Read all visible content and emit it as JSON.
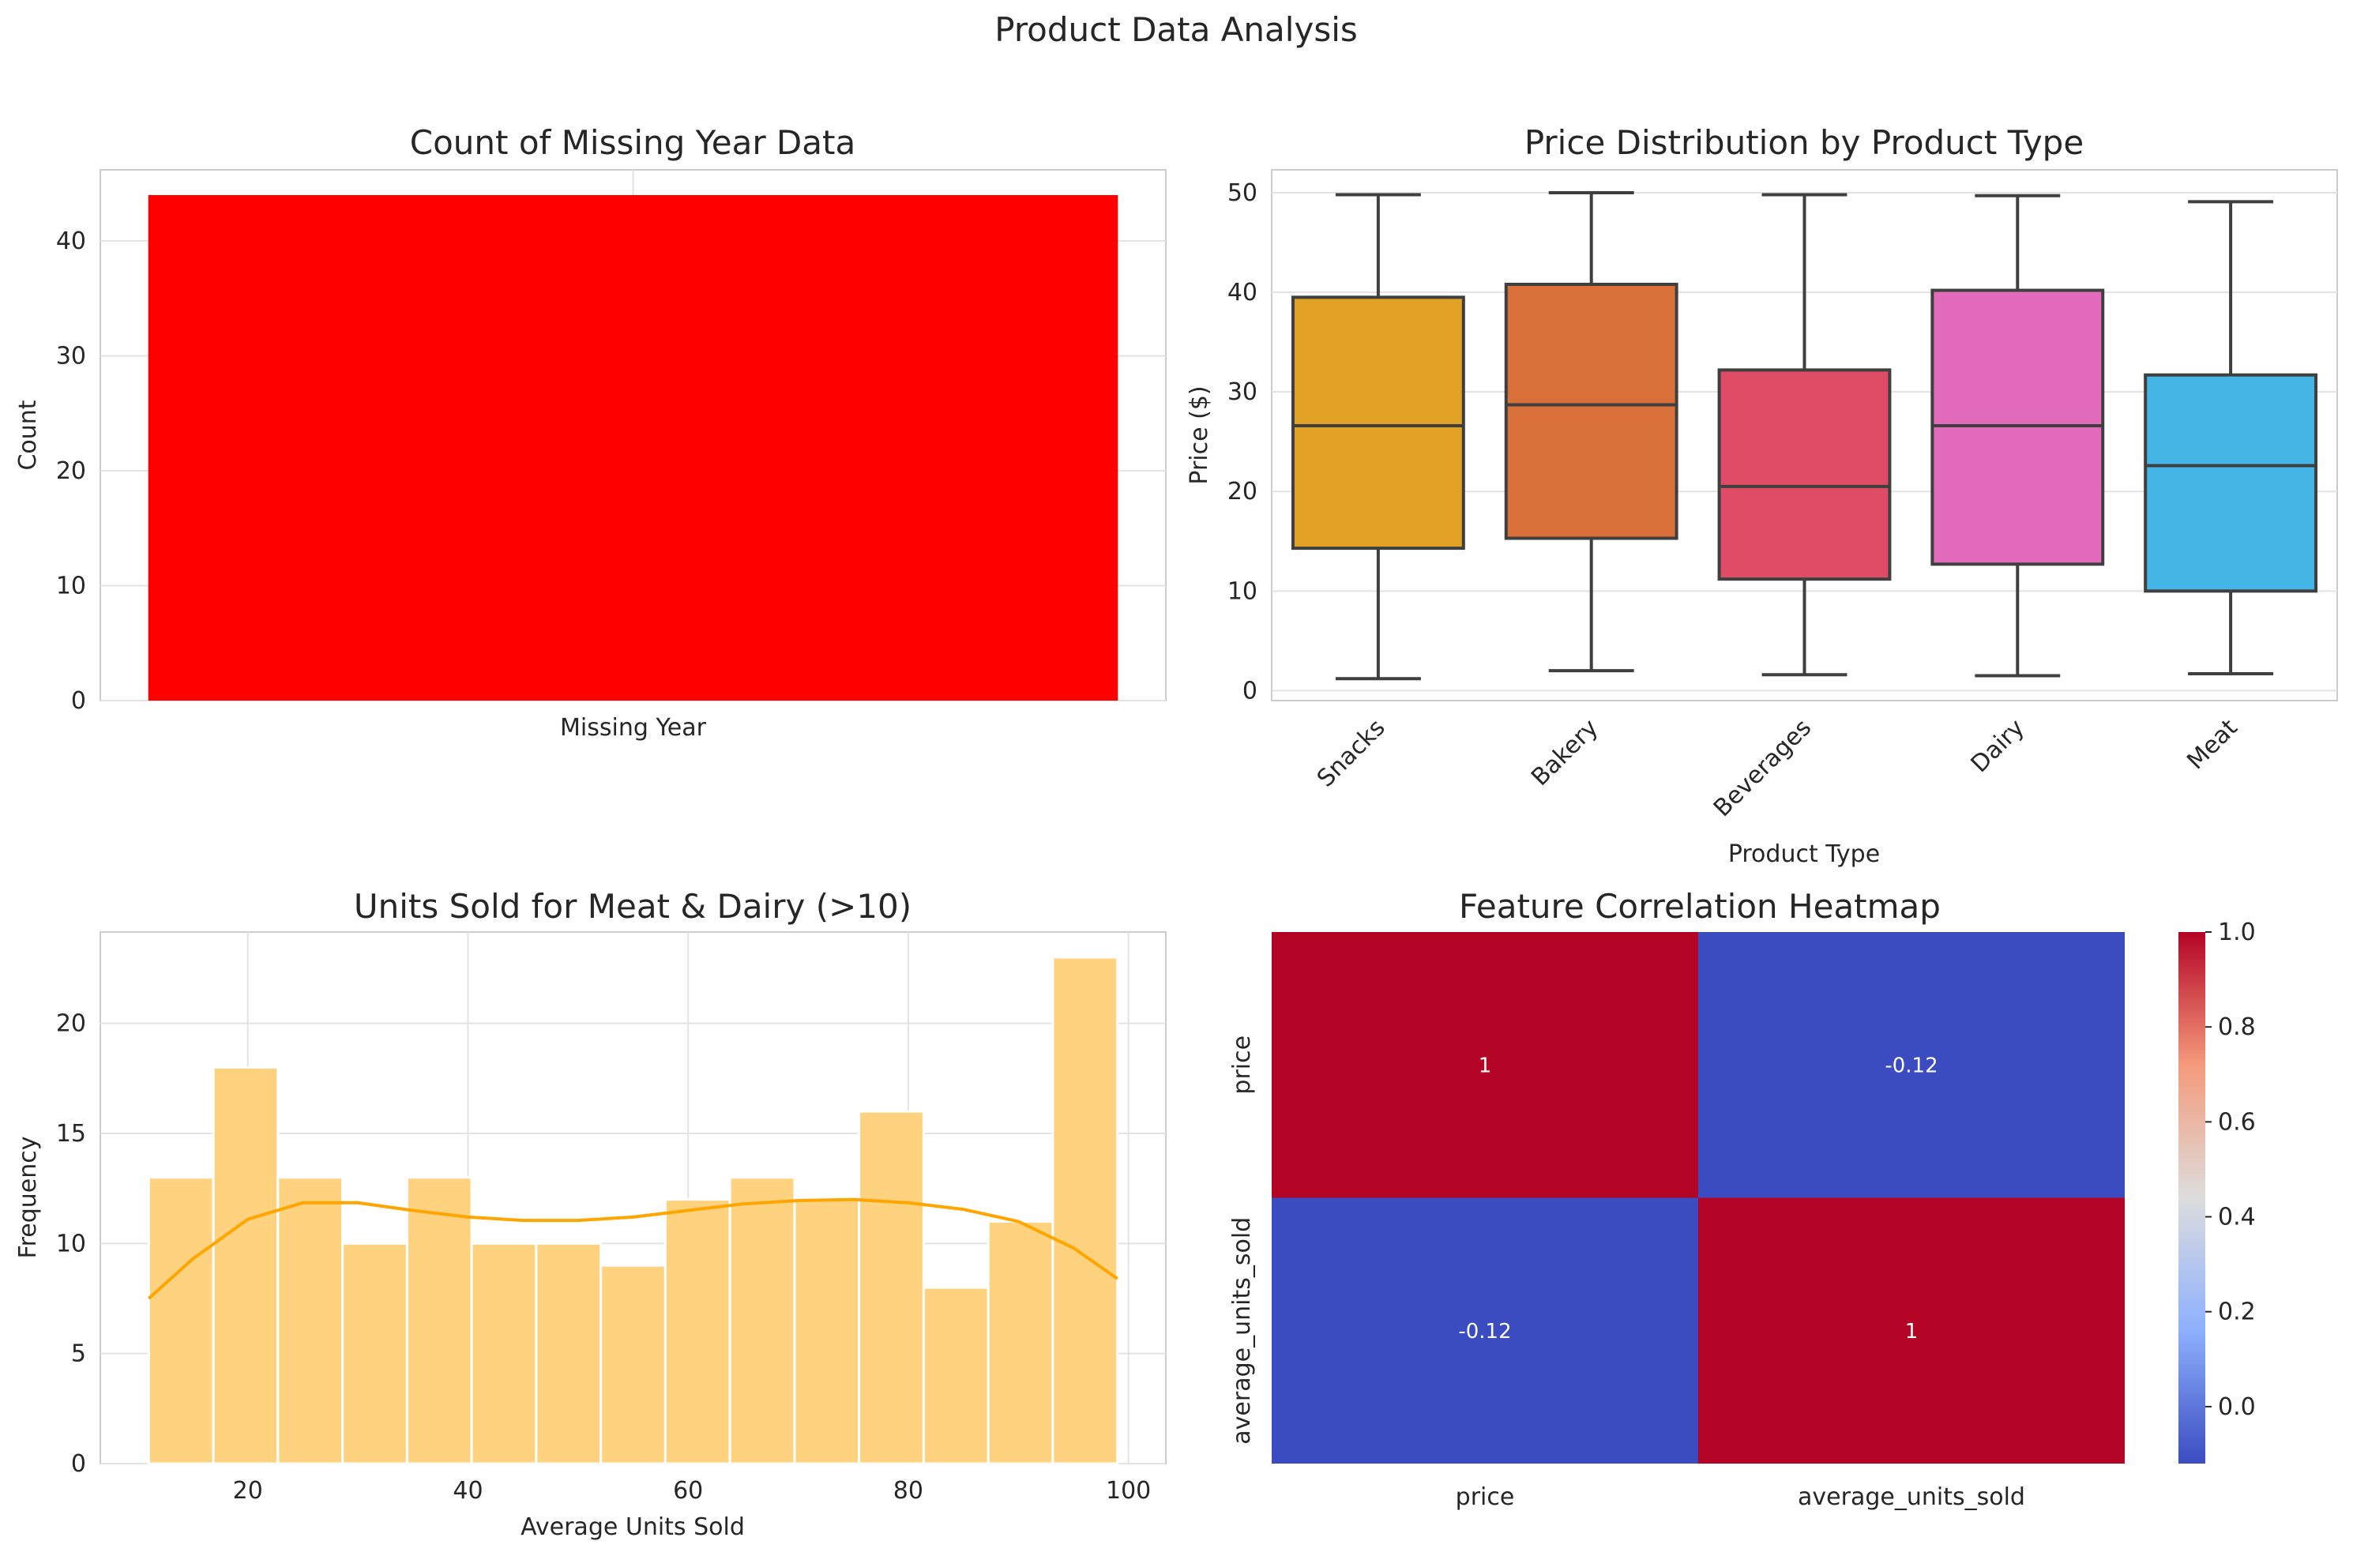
{
  "figure": {
    "title": "Product Data Analysis"
  },
  "chart_data": [
    {
      "type": "bar",
      "title": "Count of Missing Year Data",
      "xlabel": "",
      "ylabel": "Count",
      "categories": [
        "Missing Year"
      ],
      "values": [
        44
      ],
      "ylim": [
        0,
        46.2
      ],
      "yticks": [
        0,
        10,
        20,
        30,
        40
      ],
      "color": "#ff0000",
      "grid": true
    },
    {
      "type": "box",
      "title": "Price Distribution by Product Type",
      "xlabel": "Product Type",
      "ylabel": "Price ($)",
      "categories": [
        "Snacks",
        "Bakery",
        "Beverages",
        "Dairy",
        "Meat"
      ],
      "colors": [
        "#e0a125",
        "#d9703a",
        "#de4c66",
        "#e26cbb",
        "#43b6e6"
      ],
      "boxes": [
        {
          "min": 1.2,
          "q1": 14.3,
          "median": 26.6,
          "q3": 39.5,
          "max": 49.8
        },
        {
          "min": 2.0,
          "q1": 15.3,
          "median": 28.7,
          "q3": 40.8,
          "max": 50.0
        },
        {
          "min": 1.6,
          "q1": 11.2,
          "median": 20.5,
          "q3": 32.2,
          "max": 49.8
        },
        {
          "min": 1.5,
          "q1": 12.7,
          "median": 26.6,
          "q3": 40.2,
          "max": 49.7
        },
        {
          "min": 1.7,
          "q1": 10.0,
          "median": 22.6,
          "q3": 31.7,
          "max": 49.1
        }
      ],
      "ylim": [
        -1.0,
        52.3
      ],
      "yticks": [
        0,
        10,
        20,
        30,
        40,
        50
      ],
      "grid": true
    },
    {
      "type": "histogram",
      "title": "Units Sold for Meat & Dairy (>10)",
      "xlabel": "Average Units Sold",
      "ylabel": "Frequency",
      "bin_edges": [
        11,
        16.87,
        22.73,
        28.6,
        34.47,
        40.33,
        46.2,
        52.07,
        57.93,
        63.8,
        69.67,
        75.53,
        81.4,
        87.27,
        93.13,
        99
      ],
      "counts": [
        13,
        18,
        13,
        10,
        13,
        10,
        10,
        9,
        12,
        13,
        12,
        16,
        8,
        11,
        23
      ],
      "kde": {
        "x": [
          11,
          15,
          20,
          25,
          30,
          35,
          40,
          45,
          50,
          55,
          60,
          65,
          70,
          75,
          80,
          85,
          90,
          95,
          99
        ],
        "y": [
          7.5,
          9.3,
          11.1,
          11.85,
          11.85,
          11.5,
          11.2,
          11.05,
          11.05,
          11.2,
          11.5,
          11.8,
          11.95,
          12.0,
          11.85,
          11.55,
          11.0,
          9.8,
          8.4
        ]
      },
      "bar_color": "#ffd27f",
      "kde_color": "#ffa500",
      "xlim": [
        6.6,
        103.4
      ],
      "ylim": [
        0,
        24.15
      ],
      "xticks": [
        20,
        40,
        60,
        80,
        100
      ],
      "yticks": [
        0,
        5,
        10,
        15,
        20
      ],
      "grid": true
    },
    {
      "type": "heatmap",
      "title": "Feature Correlation Heatmap",
      "row_labels": [
        "price",
        "average_units_sold"
      ],
      "col_labels": [
        "price",
        "average_units_sold"
      ],
      "matrix": [
        [
          1,
          -0.12
        ],
        [
          -0.12,
          1
        ]
      ],
      "annotations": [
        [
          "1",
          "-0.12"
        ],
        [
          "-0.12",
          "1"
        ]
      ],
      "cmap": "coolwarm",
      "vmin": -0.12,
      "vmax": 1.0,
      "colorbar_ticks": [
        "1.0",
        "0.8",
        "0.6",
        "0.4",
        "0.2",
        "0.0"
      ],
      "colorbar_tick_values": [
        1.0,
        0.8,
        0.6,
        0.4,
        0.2,
        0.0
      ]
    }
  ]
}
